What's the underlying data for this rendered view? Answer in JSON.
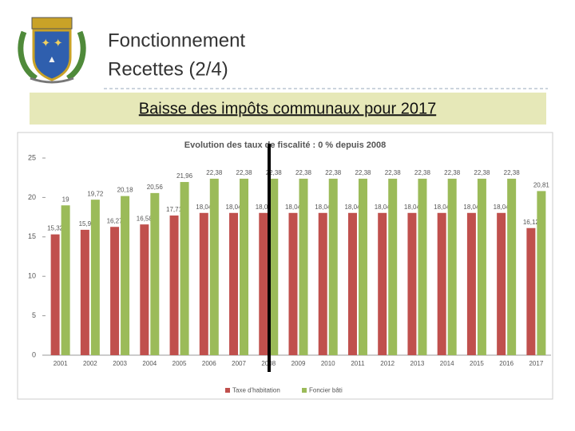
{
  "header": {
    "title": "Fonctionnement",
    "subtitle": "Recettes (2/4)"
  },
  "banner": "Baisse des impôts communaux pour 2017",
  "chart_data": {
    "type": "bar",
    "title": "Evolution des taux de fiscalité : 0 % depuis 2008",
    "categories": [
      "2001",
      "2002",
      "2003",
      "2004",
      "2005",
      "2006",
      "2007",
      "2008",
      "2009",
      "2010",
      "2011",
      "2012",
      "2013",
      "2014",
      "2015",
      "2016",
      "2017"
    ],
    "series": [
      {
        "name": "Taxe d'habitation",
        "color": "#c0504d",
        "values": [
          15.32,
          15.9,
          16.27,
          16.58,
          17.71,
          18.04,
          18.04,
          18.04,
          18.04,
          18.04,
          18.04,
          18.04,
          18.04,
          18.04,
          18.04,
          18.04,
          16.12
        ],
        "value_labels": [
          "15,32",
          "15,9",
          "16,27",
          "16,58",
          "17,71",
          "18,04",
          "18,04",
          "18,04",
          "18,04",
          "18,04",
          "18,04",
          "18,04",
          "18,04",
          "18,04",
          "18,04",
          "18,04",
          "16,12"
        ]
      },
      {
        "name": "Foncier bâti",
        "color": "#9bbb59",
        "values": [
          19,
          19.72,
          20.18,
          20.56,
          21.96,
          22.38,
          22.38,
          22.38,
          22.38,
          22.38,
          22.38,
          22.38,
          22.38,
          22.38,
          22.38,
          22.38,
          20.81
        ],
        "value_labels": [
          "19",
          "19,72",
          "20,18",
          "20,56",
          "21,96",
          "22,38",
          "22,38",
          "22,38",
          "22,38",
          "22,38",
          "22,38",
          "22,38",
          "22,38",
          "22,38",
          "22,38",
          "22,38",
          "20,81"
        ]
      }
    ],
    "ylim": [
      0,
      25
    ],
    "yticks": [
      0,
      5,
      10,
      15,
      20,
      25
    ],
    "grid": false,
    "legend": "bottom"
  }
}
